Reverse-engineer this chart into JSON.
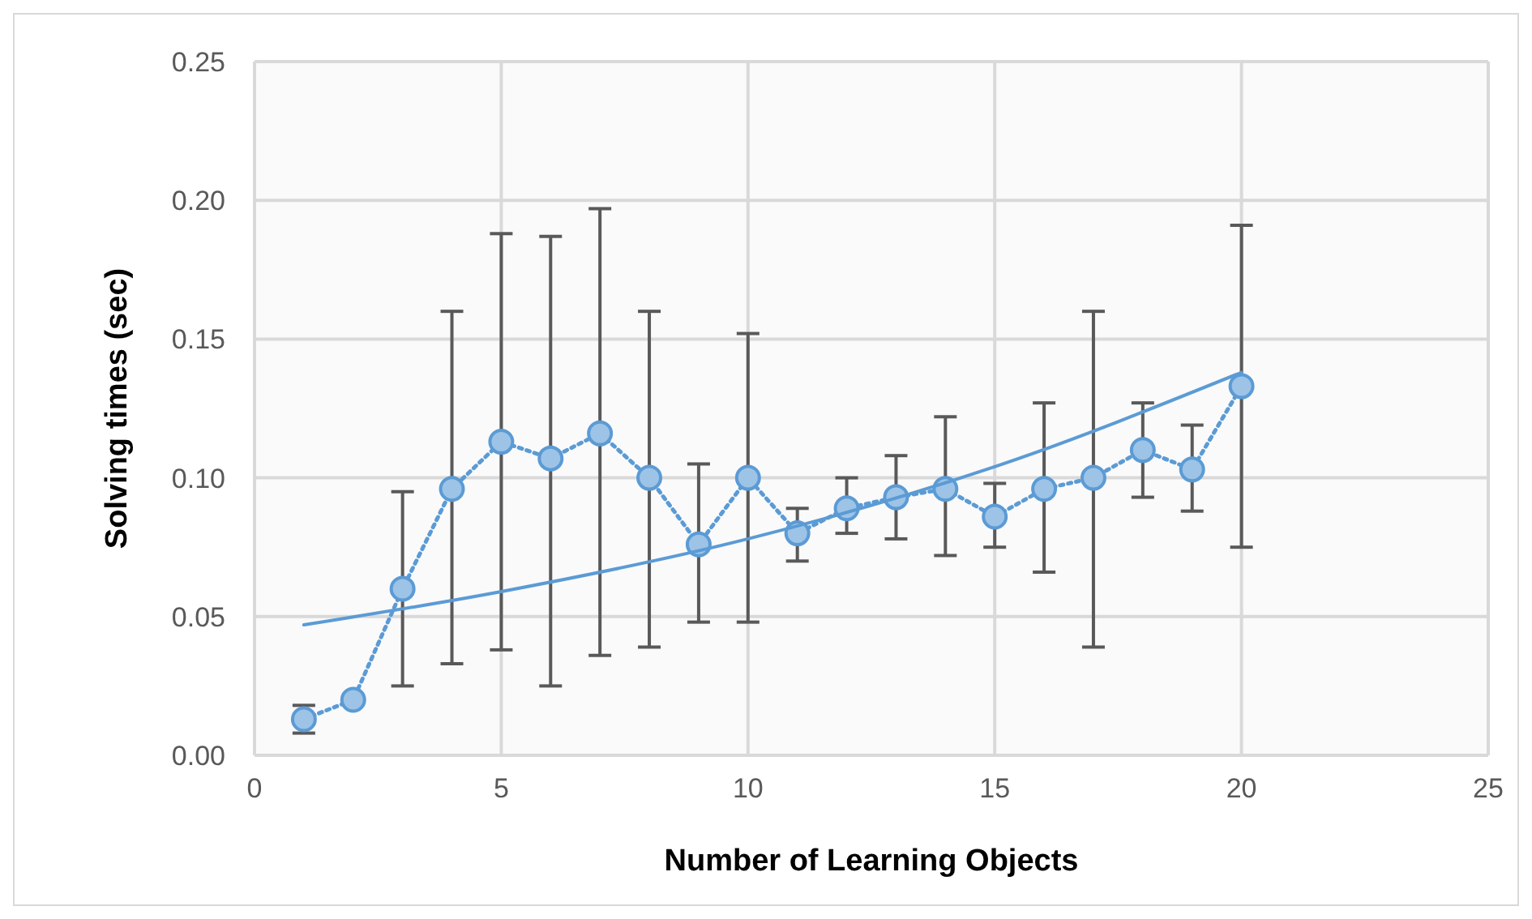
{
  "chart_data": {
    "type": "line",
    "xlabel": "Number of Learning Objects",
    "ylabel": "Solving times (sec)",
    "xlim": [
      0,
      25
    ],
    "xticks": [
      0,
      5,
      10,
      15,
      20,
      25
    ],
    "ylim": [
      0,
      0.25
    ],
    "yticks": [
      {
        "value": 0,
        "label": "0.00"
      },
      {
        "value": 0.05,
        "label": "0.05"
      },
      {
        "value": 0.1,
        "label": "0.10"
      },
      {
        "value": 0.15,
        "label": "0.15"
      },
      {
        "value": 0.2,
        "label": "0.20"
      },
      {
        "value": 0.25,
        "label": "0.25"
      }
    ],
    "grid": true,
    "series": [
      {
        "color": "#5b9bd5",
        "marker": "circle",
        "line_style": "dotted",
        "x": [
          1,
          2,
          3,
          4,
          5,
          6,
          7,
          8,
          9,
          10,
          11,
          12,
          13,
          14,
          15,
          16,
          17,
          18,
          19,
          20
        ],
        "values": [
          0.013,
          0.02,
          0.06,
          0.096,
          0.113,
          0.107,
          0.116,
          0.1,
          0.076,
          0.1,
          0.08,
          0.089,
          0.093,
          0.096,
          0.086,
          0.096,
          0.1,
          0.11,
          0.103,
          0.133
        ],
        "errors": [
          [
            0.008,
            0.018
          ],
          null,
          [
            0.025,
            0.095
          ],
          [
            0.033,
            0.16
          ],
          [
            0.038,
            0.188
          ],
          [
            0.025,
            0.187
          ],
          [
            0.036,
            0.197
          ],
          [
            0.039,
            0.16
          ],
          [
            0.048,
            0.105
          ],
          [
            0.048,
            0.152
          ],
          [
            0.07,
            0.089
          ],
          [
            0.08,
            0.1
          ],
          [
            0.078,
            0.108
          ],
          [
            0.072,
            0.122
          ],
          [
            0.075,
            0.098
          ],
          [
            0.066,
            0.127
          ],
          [
            0.039,
            0.16
          ],
          [
            0.093,
            0.127
          ],
          [
            0.088,
            0.119
          ],
          [
            0.075,
            0.191
          ]
        ]
      },
      {
        "color": "#5b9bd5",
        "marker": "none",
        "line_style": "solid",
        "x": [
          1,
          5,
          10,
          15,
          20
        ],
        "values": [
          0.047,
          0.059,
          0.078,
          0.104,
          0.138
        ]
      }
    ]
  }
}
